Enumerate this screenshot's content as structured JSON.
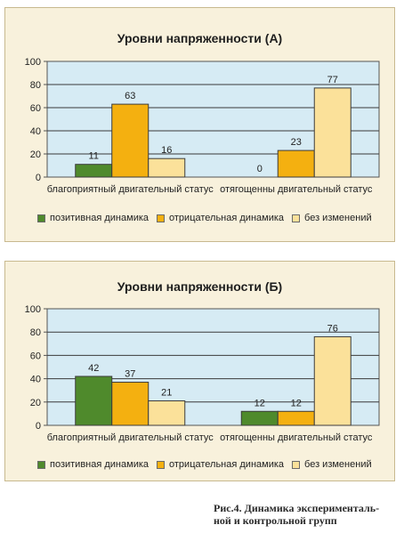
{
  "chart_data": [
    {
      "type": "bar",
      "title": "Уровни напряженности (А)",
      "categories": [
        "благоприятный двигательный статус",
        "отягощенны двигательный статус"
      ],
      "series": [
        {
          "name": "позитивная динамика",
          "values": [
            11,
            0
          ],
          "color": "#4f8a2c"
        },
        {
          "name": "отрицательная динамика",
          "values": [
            63,
            23
          ],
          "color": "#f4b010"
        },
        {
          "name": "без изменений",
          "values": [
            16,
            77
          ],
          "color": "#fbe19a"
        }
      ],
      "yticks": [
        "0",
        "20",
        "40",
        "60",
        "80",
        "100"
      ],
      "ylim": [
        0,
        100
      ],
      "grid": true,
      "legend_position": "bottom",
      "plot_background": "#d6ebf4"
    },
    {
      "type": "bar",
      "title": "Уровни напряженности (Б)",
      "categories": [
        "благоприятный двигательный статус",
        "отягощенны двигательный статус"
      ],
      "series": [
        {
          "name": "позитивная динамика",
          "values": [
            42,
            12
          ],
          "color": "#4f8a2c"
        },
        {
          "name": "отрицательная динамика",
          "values": [
            37,
            12
          ],
          "color": "#f4b010"
        },
        {
          "name": "без изменений",
          "values": [
            21,
            76
          ],
          "color": "#fbe19a"
        }
      ],
      "yticks": [
        "0",
        "20",
        "40",
        "60",
        "80",
        "100"
      ],
      "ylim": [
        0,
        100
      ],
      "grid": true,
      "legend_position": "bottom",
      "plot_background": "#d6ebf4"
    }
  ],
  "caption": {
    "line1": "Рис.4. Динамика эксперименталь-",
    "line2": "ной и контрольной групп"
  }
}
